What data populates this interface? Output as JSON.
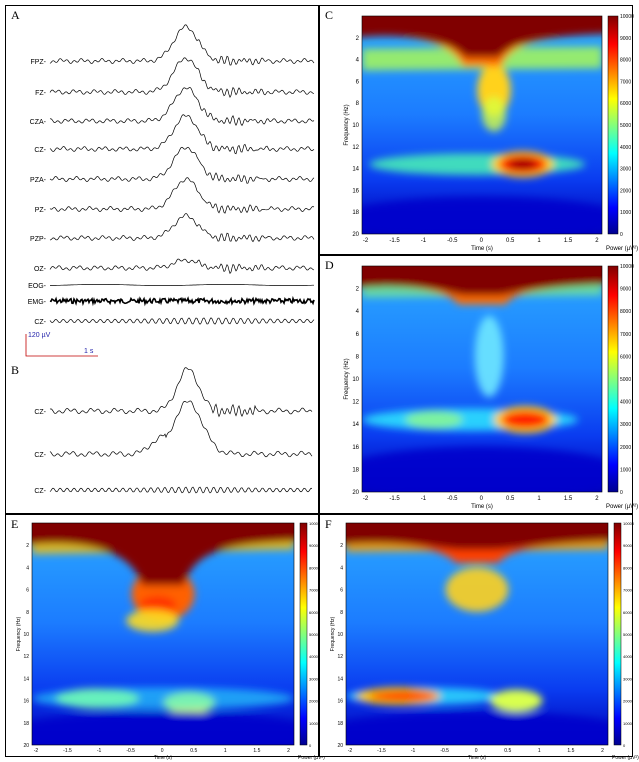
{
  "figure": {
    "panel_a": {
      "label": "A",
      "channels": [
        "FPZ-",
        "FZ-",
        "CZA-",
        "CZ-",
        "PZA-",
        "PZ-",
        "PZP-",
        "OZ-",
        "EOG-",
        "EMG-",
        "CZ-"
      ],
      "scale_voltage": "120 µV",
      "scale_time": "1 s"
    },
    "panel_b": {
      "label": "B",
      "channels": [
        "CZ-",
        "CZ-",
        "CZ-"
      ]
    },
    "panel_c": {
      "label": "C",
      "ylabel": "Frequency (Hz)",
      "xlabel": "Time (s)",
      "colorbar_label": "Power (µV²)",
      "yticks": [
        "2",
        "4",
        "6",
        "8",
        "10",
        "12",
        "14",
        "16",
        "18",
        "20"
      ],
      "xticks": [
        "-2",
        "-1.5",
        "-1",
        "-0.5",
        "0",
        "0.5",
        "1",
        "1.5",
        "2"
      ],
      "cticks": [
        "10000",
        "9000",
        "8000",
        "7000",
        "6000",
        "5000",
        "4000",
        "3000",
        "2000",
        "1000",
        "0"
      ]
    },
    "panel_d": {
      "label": "D",
      "ylabel": "Frequency (Hz)",
      "xlabel": "Time (s)",
      "colorbar_label": "Power (µV²)",
      "yticks": [
        "2",
        "4",
        "6",
        "8",
        "10",
        "12",
        "14",
        "16",
        "18",
        "20"
      ],
      "xticks": [
        "-2",
        "-1.5",
        "-1",
        "-0.5",
        "0",
        "0.5",
        "1",
        "1.5",
        "2"
      ],
      "cticks": [
        "10000",
        "9000",
        "8000",
        "7000",
        "6000",
        "5000",
        "4000",
        "3000",
        "2000",
        "1000",
        "0"
      ]
    },
    "panel_e": {
      "label": "E",
      "ylabel": "Frequency (Hz)",
      "xlabel": "Time (s)",
      "colorbar_label": "Power (µV²)",
      "yticks": [
        "2",
        "4",
        "6",
        "8",
        "10",
        "12",
        "14",
        "16",
        "18",
        "20"
      ],
      "xticks": [
        "-2",
        "-1.5",
        "-1",
        "-0.5",
        "0",
        "0.5",
        "1",
        "1.5",
        "2"
      ],
      "cticks": [
        "10000",
        "9000",
        "8000",
        "7000",
        "6000",
        "5000",
        "4000",
        "3000",
        "2000",
        "1000",
        "0"
      ]
    },
    "panel_f": {
      "label": "F",
      "ylabel": "Frequency (Hz)",
      "xlabel": "Time (s)",
      "colorbar_label": "Power (µV²)",
      "yticks": [
        "2",
        "4",
        "6",
        "8",
        "10",
        "12",
        "14",
        "16",
        "18",
        "20"
      ],
      "xticks": [
        "-2",
        "-1.5",
        "-1",
        "-0.5",
        "0",
        "0.5",
        "1",
        "1.5",
        "2"
      ],
      "cticks": [
        "10000",
        "9000",
        "8000",
        "7000",
        "6000",
        "5000",
        "4000",
        "3000",
        "2000",
        "1000",
        "0"
      ]
    }
  },
  "colors": {
    "low": "#00008f",
    "mid": "#39c8ff",
    "high": "#ffd21e",
    "max": "#800000"
  }
}
